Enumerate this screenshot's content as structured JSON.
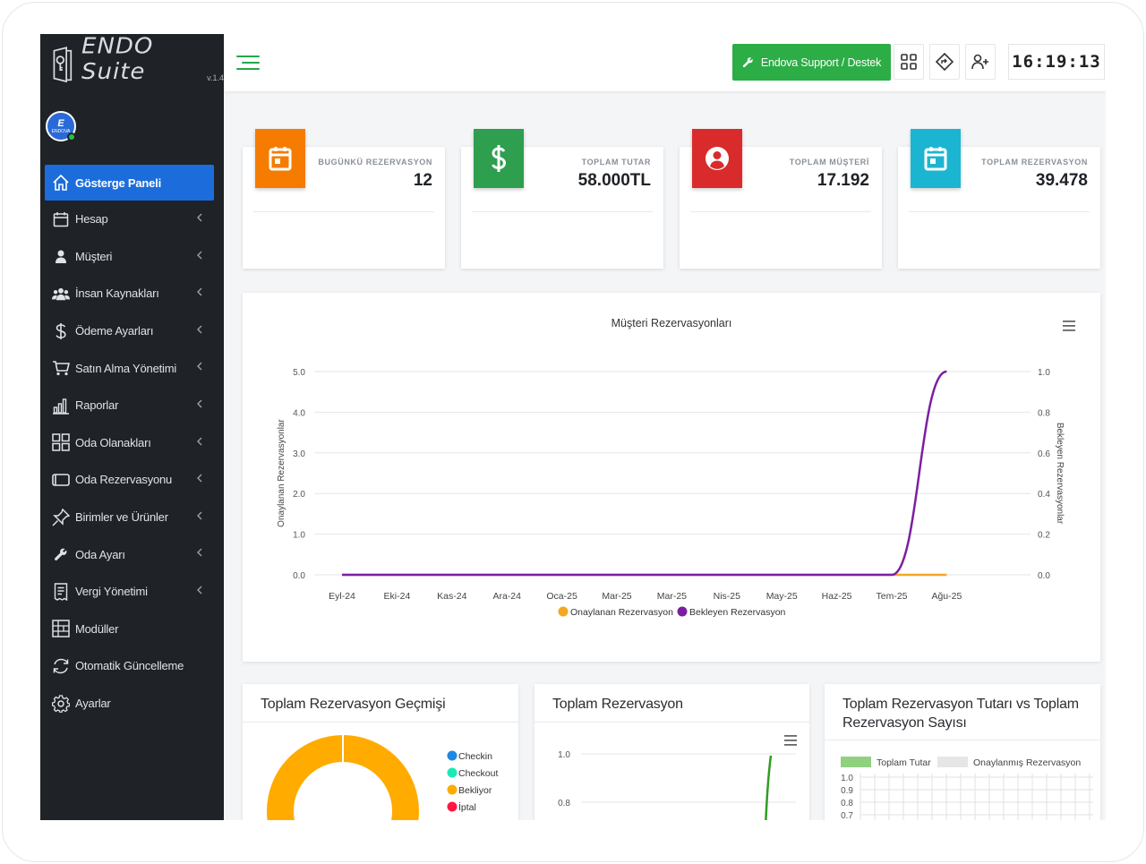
{
  "app": {
    "brand": "ENDO Suite",
    "version": "v.1.4",
    "avatar_text": "E",
    "avatar_sub": "ENDOVA"
  },
  "sidebar": {
    "items": [
      {
        "label": "Gösterge Paneli",
        "icon": "home-icon",
        "active": true,
        "chevron": false
      },
      {
        "label": "Hesap",
        "icon": "calendar-icon",
        "chevron": true
      },
      {
        "label": "Müşteri",
        "icon": "user-icon",
        "chevron": true
      },
      {
        "label": "İnsan Kaynakları",
        "icon": "users-icon",
        "chevron": true
      },
      {
        "label": "Ödeme Ayarları",
        "icon": "dollar-icon",
        "chevron": true
      },
      {
        "label": "Satın Alma Yönetimi",
        "icon": "cart-icon",
        "chevron": true
      },
      {
        "label": "Raporlar",
        "icon": "bar-chart-icon",
        "chevron": true
      },
      {
        "label": "Oda Olanakları",
        "icon": "grid-icon",
        "chevron": true
      },
      {
        "label": "Oda Rezervasyonu",
        "icon": "tablet-icon",
        "chevron": true
      },
      {
        "label": "Birimler ve Ürünler",
        "icon": "pin-icon",
        "chevron": true
      },
      {
        "label": "Oda Ayarı",
        "icon": "wrench-icon",
        "chevron": true
      },
      {
        "label": "Vergi Yönetimi",
        "icon": "receipt-icon",
        "chevron": true
      },
      {
        "label": "Modüller",
        "icon": "layout-icon",
        "chevron": false
      },
      {
        "label": "Otomatik Güncelleme",
        "icon": "refresh-icon",
        "chevron": false
      },
      {
        "label": "Ayarlar",
        "icon": "gear-icon",
        "chevron": false
      }
    ]
  },
  "topbar": {
    "support_label": "Endova Support / Destek",
    "clock": "16:19:13"
  },
  "stats": [
    {
      "label": "BUGÜNKÜ REZERVASYON",
      "value": "12",
      "color": "#f57c00",
      "icon": "calendar-icon"
    },
    {
      "label": "TOPLAM TUTAR",
      "value": "58.000TL",
      "color": "#2e9e4f",
      "icon": "dollar-icon"
    },
    {
      "label": "TOPLAM MÜŞTERİ",
      "value": "17.192",
      "color": "#d92b2b",
      "icon": "user-circle-icon"
    },
    {
      "label": "TOPLAM REZERVASYON",
      "value": "39.478",
      "color": "#1cb5d1",
      "icon": "calendar-icon"
    }
  ],
  "chart_data": [
    {
      "type": "line",
      "title": "Müşteri Rezervasyonları",
      "categories": [
        "Eyl-24",
        "Eki-24",
        "Kas-24",
        "Ara-24",
        "Oca-25",
        "Mar-25",
        "Mar-25",
        "Nis-25",
        "May-25",
        "Haz-25",
        "Tem-25",
        "Ağu-25"
      ],
      "ylabel": "Onaylanan Rezervasyonlar",
      "y2label": "Bekleyen Rezervasyonlar",
      "ylim": [
        0,
        5
      ],
      "y2lim": [
        0,
        1
      ],
      "yticks": [
        "0.0",
        "1.0",
        "2.0",
        "3.0",
        "4.0",
        "5.0"
      ],
      "y2ticks": [
        "0.0",
        "0.2",
        "0.4",
        "0.6",
        "0.8",
        "1.0"
      ],
      "grid": true,
      "legend": "bottom",
      "series": [
        {
          "name": "Onaylanan Rezervasyon",
          "axis": "left",
          "color": "#f5a623",
          "values": [
            0,
            0,
            0,
            0,
            0,
            0,
            0,
            0,
            0,
            0,
            0,
            0
          ]
        },
        {
          "name": "Bekleyen Rezervasyon",
          "axis": "right",
          "color": "#7b1fa2",
          "values": [
            0,
            0,
            0,
            0,
            0,
            0,
            0,
            0,
            0,
            0,
            0,
            1
          ]
        }
      ]
    },
    {
      "type": "pie",
      "title": "Toplam Rezervasyon Geçmişi",
      "legend": "right",
      "slices": [
        {
          "name": "Checkin",
          "value": 0,
          "color": "#1e88e5"
        },
        {
          "name": "Checkout",
          "value": 0,
          "color": "#1de9b6"
        },
        {
          "name": "Bekliyor",
          "value": 1,
          "color": "#ffab00"
        },
        {
          "name": "İptal",
          "value": 0,
          "color": "#ff1744"
        }
      ]
    },
    {
      "type": "line",
      "title": "Toplam Rezervasyon",
      "yticks": [
        "1.0",
        "0.8"
      ],
      "series": [
        {
          "color": "#2e9e1f"
        }
      ]
    },
    {
      "type": "bar",
      "title": "Toplam Rezervasyon Tutarı vs Toplam Rezervasyon Sayısı",
      "legend": "top",
      "yticks": [
        "1.0",
        "0.9",
        "0.8",
        "0.7"
      ],
      "series": [
        {
          "name": "Toplam Tutar",
          "color": "#8fd17e"
        },
        {
          "name": "Onaylanmış Rezervasyon",
          "color": "#e6e6e6"
        }
      ]
    }
  ]
}
